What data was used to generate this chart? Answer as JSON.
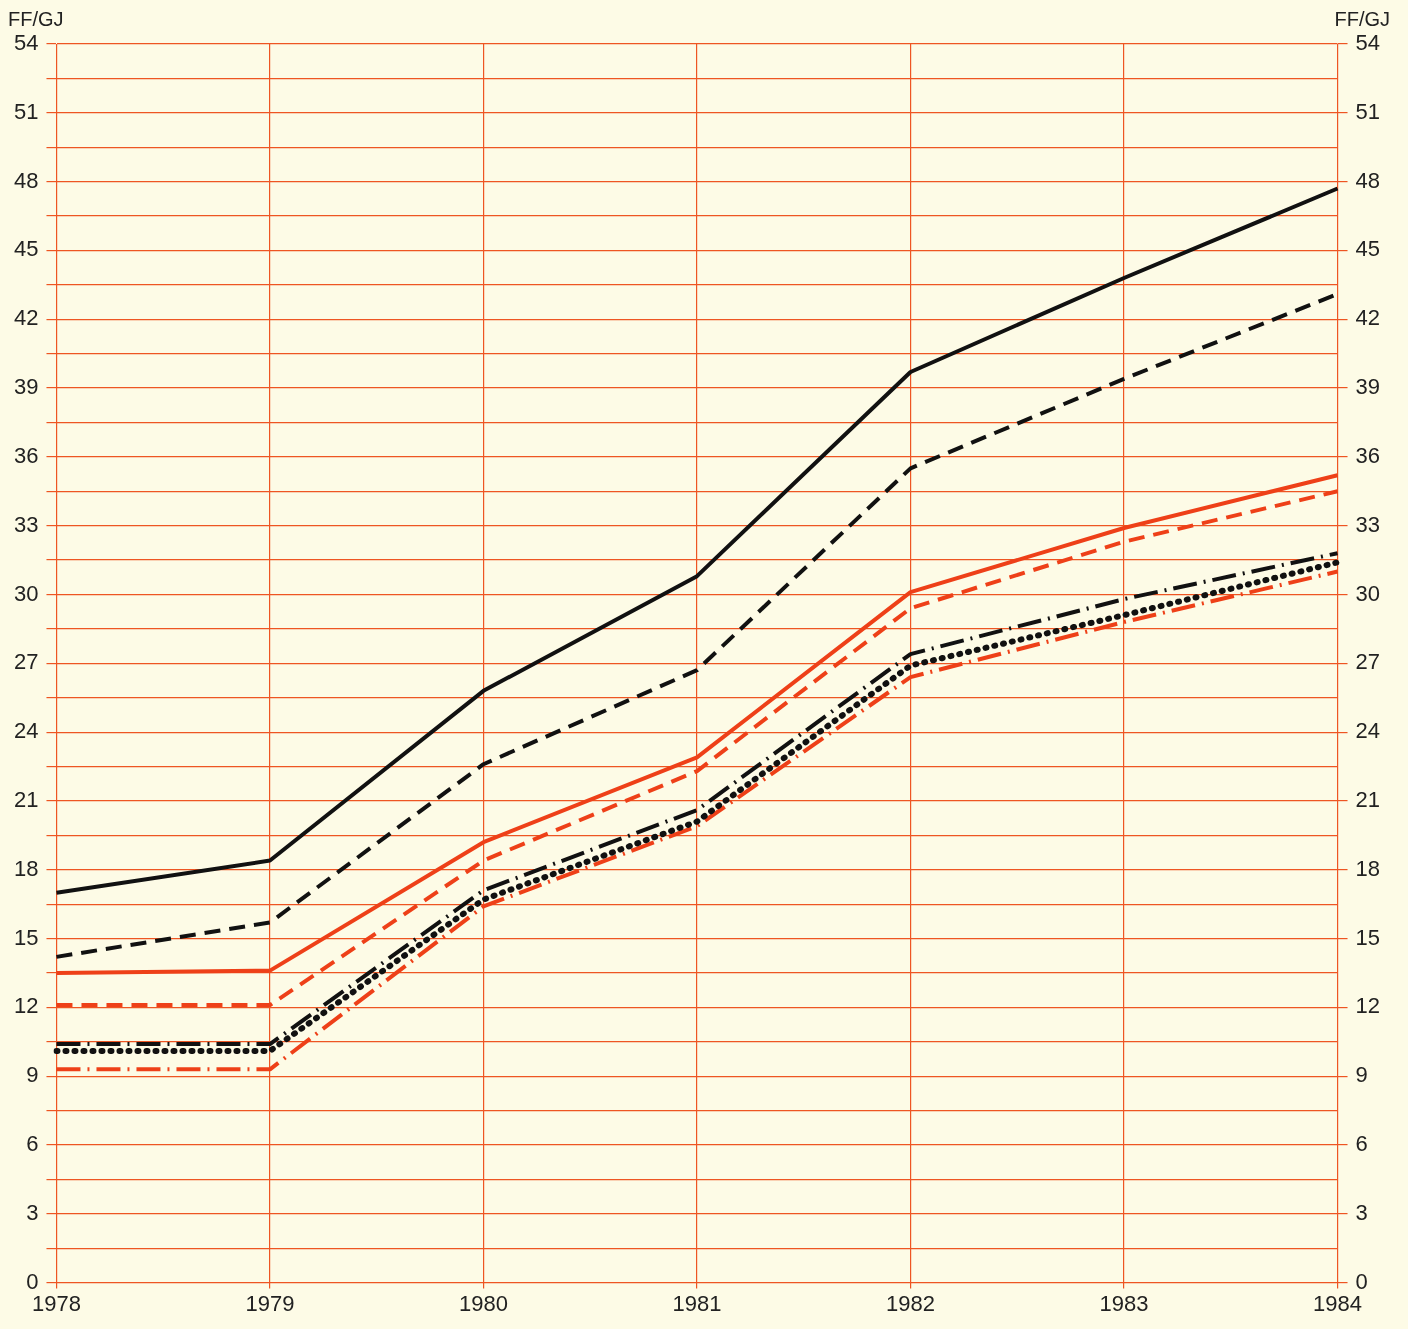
{
  "chart_data": {
    "type": "line",
    "ylabel": "FF/GJ",
    "y2label": "FF/GJ",
    "categories": [
      "1978",
      "1979",
      "1980",
      "1981",
      "1982",
      "1983",
      "1984"
    ],
    "series": [
      {
        "color": "#111111",
        "line_style": "solid",
        "values": [
          17.0,
          18.4,
          25.8,
          30.8,
          39.7,
          43.8,
          47.7
        ]
      },
      {
        "color": "#111111",
        "line_style": "dashed",
        "values": [
          14.2,
          15.7,
          22.6,
          26.7,
          35.5,
          39.4,
          43.1
        ]
      },
      {
        "color": "#ee4018",
        "line_style": "solid",
        "values": [
          13.5,
          13.6,
          19.2,
          22.9,
          30.1,
          32.9,
          35.2
        ]
      },
      {
        "color": "#ee4018",
        "line_style": "dashed",
        "values": [
          12.1,
          12.1,
          18.4,
          22.3,
          29.4,
          32.3,
          34.5
        ]
      },
      {
        "color": "#111111",
        "line_style": "dashdot",
        "values": [
          10.4,
          10.4,
          17.1,
          20.6,
          27.4,
          29.8,
          31.8
        ]
      },
      {
        "color": "#111111",
        "line_style": "dotted",
        "values": [
          10.1,
          10.1,
          16.7,
          20.1,
          26.9,
          29.1,
          31.4
        ]
      },
      {
        "color": "#ee4018",
        "line_style": "dashdot",
        "values": [
          9.3,
          9.3,
          16.4,
          19.9,
          26.4,
          28.8,
          31.0
        ]
      }
    ],
    "ylim": [
      0,
      54
    ],
    "y2lim": [
      0,
      54
    ],
    "yticks": [
      0,
      {
        "value": 1.5,
        "label": null
      },
      3,
      {
        "value": 4.5,
        "label": null
      },
      6,
      {
        "value": 7.5,
        "label": null
      },
      9,
      {
        "value": 10.5,
        "label": null
      },
      12,
      {
        "value": 13.5,
        "label": null
      },
      15,
      {
        "value": 16.5,
        "label": null
      },
      18,
      {
        "value": 19.5,
        "label": null
      },
      21,
      {
        "value": 22.5,
        "label": null
      },
      24,
      {
        "value": 25.5,
        "label": null
      },
      27,
      {
        "value": 28.5,
        "label": null
      },
      30,
      {
        "value": 31.5,
        "label": null
      },
      33,
      {
        "value": 34.5,
        "label": null
      },
      36,
      {
        "value": 37.5,
        "label": null
      },
      39,
      {
        "value": 40.5,
        "label": null
      },
      42,
      {
        "value": 43.5,
        "label": null
      },
      45,
      {
        "value": 46.5,
        "label": null
      },
      48,
      {
        "value": 49.5,
        "label": null
      },
      51,
      {
        "value": 52.5,
        "label": null
      },
      54
    ],
    "y2ticks": [
      0,
      3,
      6,
      9,
      12,
      15,
      18,
      21,
      24,
      27,
      30,
      33,
      36,
      39,
      42,
      45,
      48,
      51,
      54
    ],
    "grid": true,
    "marker": "none"
  }
}
